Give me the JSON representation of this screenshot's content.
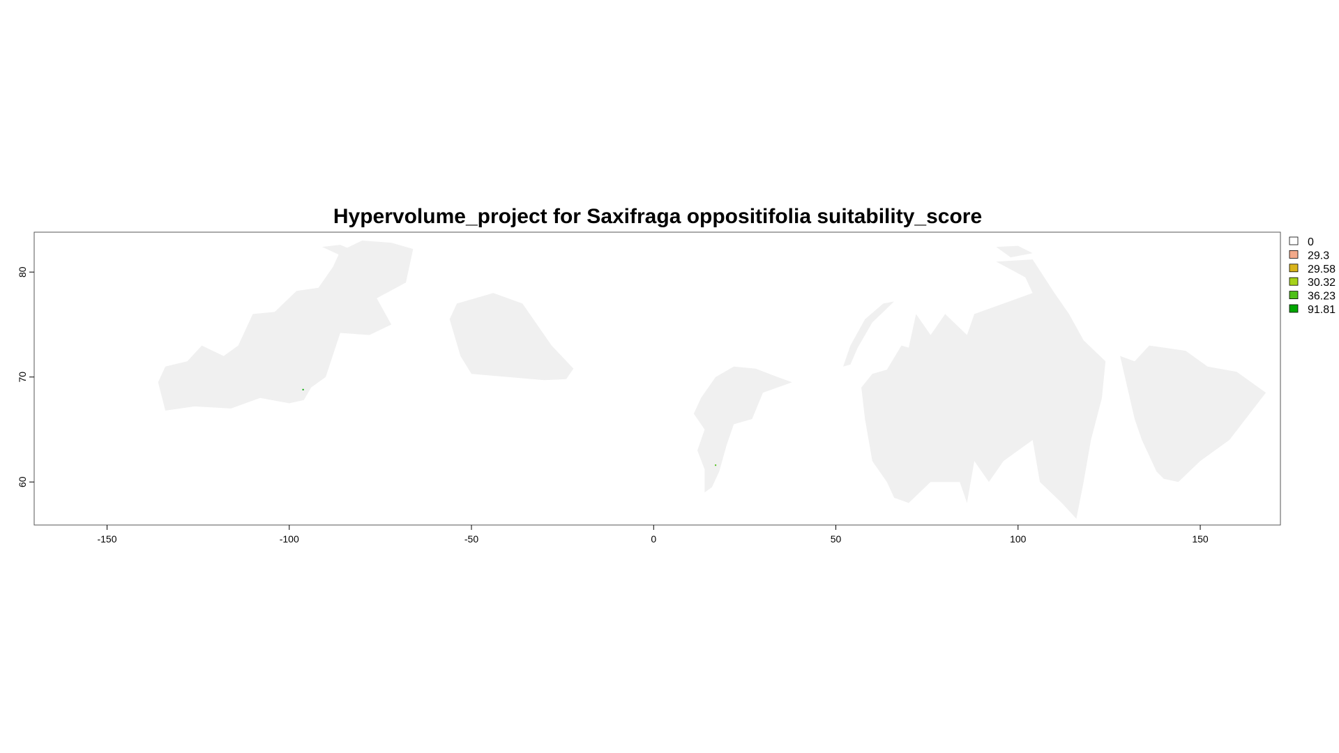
{
  "chart_data": {
    "type": "heatmap",
    "title": "Hypervolume_project for Saxifraga oppositifolia suitability_score",
    "xlabel": "",
    "ylabel": "",
    "xlim": [
      -170,
      172
    ],
    "ylim": [
      55.9,
      83.8
    ],
    "x_ticks": [
      "-150",
      "-100",
      "-50",
      "0",
      "50",
      "100",
      "150"
    ],
    "y_ticks": [
      "60",
      "70",
      "80"
    ],
    "grid": false,
    "legend_position": "right",
    "legend": [
      {
        "label": "0",
        "color": "#ffffff"
      },
      {
        "label": "29.3",
        "color": "#f2a98a"
      },
      {
        "label": "29.58",
        "color": "#d9b41c"
      },
      {
        "label": "30.32",
        "color": "#a6d21a"
      },
      {
        "label": "36.23",
        "color": "#4dbf17"
      },
      {
        "label": "91.81",
        "color": "#00a600"
      }
    ],
    "land_color": "#f0f0f0",
    "land_regions": [
      {
        "name": "arctic-canada-west",
        "polygon": [
          [
            -136,
            69.5
          ],
          [
            -134,
            71
          ],
          [
            -128,
            71.5
          ],
          [
            -124,
            73
          ],
          [
            -118,
            72
          ],
          [
            -114,
            73
          ],
          [
            -110,
            76
          ],
          [
            -104,
            76.2
          ],
          [
            -98,
            78.2
          ],
          [
            -92,
            78.5
          ],
          [
            -88,
            80.5
          ],
          [
            -86,
            82
          ],
          [
            -80,
            83
          ],
          [
            -72,
            82.8
          ],
          [
            -66,
            82.2
          ],
          [
            -68,
            79
          ],
          [
            -76,
            77.5
          ],
          [
            -72,
            75
          ],
          [
            -78,
            74
          ],
          [
            -86,
            74.2
          ],
          [
            -90,
            70
          ],
          [
            -94,
            69
          ],
          [
            -96,
            67.8
          ],
          [
            -100,
            67.5
          ],
          [
            -108,
            68
          ],
          [
            -116,
            67
          ],
          [
            -126,
            67.2
          ],
          [
            -134,
            66.8
          ]
        ]
      },
      {
        "name": "greenland-west",
        "polygon": [
          [
            -56,
            75.5
          ],
          [
            -54,
            77
          ],
          [
            -44,
            78
          ],
          [
            -36,
            77
          ],
          [
            -28,
            73
          ],
          [
            -22,
            70.8
          ],
          [
            -24,
            69.8
          ],
          [
            -30,
            69.7
          ],
          [
            -40,
            70
          ],
          [
            -50,
            70.3
          ],
          [
            -53,
            72
          ]
        ]
      },
      {
        "name": "scandinavia",
        "polygon": [
          [
            14,
            61.2
          ],
          [
            12,
            63
          ],
          [
            14,
            65
          ],
          [
            11,
            66.5
          ],
          [
            13,
            68
          ],
          [
            17,
            70
          ],
          [
            22,
            71
          ],
          [
            28,
            70.8
          ],
          [
            34,
            70
          ],
          [
            38,
            69.5
          ],
          [
            30,
            68.5
          ],
          [
            27,
            66
          ],
          [
            22,
            65.5
          ],
          [
            20,
            63.5
          ],
          [
            18,
            61
          ],
          [
            16,
            59.5
          ],
          [
            14,
            59
          ]
        ]
      },
      {
        "name": "siberia-west",
        "polygon": [
          [
            57,
            69
          ],
          [
            60,
            70.3
          ],
          [
            64,
            70.7
          ],
          [
            68,
            73
          ],
          [
            70,
            72.8
          ],
          [
            72,
            76
          ],
          [
            76,
            74
          ],
          [
            80,
            76
          ],
          [
            86,
            74
          ],
          [
            88,
            76
          ],
          [
            96,
            77
          ],
          [
            104,
            78
          ],
          [
            102,
            79.5
          ],
          [
            94,
            81
          ],
          [
            104,
            81.2
          ],
          [
            110,
            78
          ],
          [
            114,
            76
          ],
          [
            118,
            73.5
          ],
          [
            124,
            71.5
          ],
          [
            123,
            68
          ],
          [
            120,
            64
          ],
          [
            118,
            60
          ],
          [
            116,
            56.5
          ],
          [
            112,
            58
          ],
          [
            106,
            60
          ],
          [
            104,
            64
          ],
          [
            96,
            62
          ],
          [
            92,
            60
          ],
          [
            88,
            62
          ],
          [
            86,
            58
          ],
          [
            84,
            60
          ],
          [
            76,
            60
          ],
          [
            70,
            58
          ],
          [
            66,
            58.5
          ],
          [
            64,
            60
          ],
          [
            60,
            62
          ],
          [
            58,
            66
          ]
        ]
      },
      {
        "name": "siberia-east",
        "polygon": [
          [
            128,
            72
          ],
          [
            132,
            71.5
          ],
          [
            136,
            73
          ],
          [
            146,
            72.5
          ],
          [
            152,
            71
          ],
          [
            160,
            70.5
          ],
          [
            164,
            69.5
          ],
          [
            168,
            68.5
          ],
          [
            158,
            64
          ],
          [
            150,
            62
          ],
          [
            144,
            60
          ],
          [
            140,
            60.3
          ],
          [
            138,
            61
          ],
          [
            134,
            64
          ],
          [
            132,
            66
          ],
          [
            130,
            69
          ]
        ]
      },
      {
        "name": "novaya-zemlya-arc",
        "polygon": [
          [
            52,
            71
          ],
          [
            54,
            73
          ],
          [
            58,
            75.5
          ],
          [
            63,
            77
          ],
          [
            66,
            77.2
          ],
          [
            60,
            75.2
          ],
          [
            56,
            72.8
          ],
          [
            54,
            71.2
          ]
        ]
      },
      {
        "name": "svalbard-like-east",
        "polygon": [
          [
            94,
            82.4
          ],
          [
            100,
            82.5
          ],
          [
            104,
            81.8
          ],
          [
            98,
            81.4
          ]
        ]
      },
      {
        "name": "ellesmere-like-west",
        "polygon": [
          [
            -91,
            82.4
          ],
          [
            -86,
            82.6
          ],
          [
            -82,
            82
          ],
          [
            -86,
            81.6
          ]
        ]
      }
    ],
    "highlight_points": [
      {
        "x": -96.2,
        "y": 68.8,
        "value": 91.81
      },
      {
        "x": 17,
        "y": 61.6,
        "value": 36.23
      }
    ]
  }
}
